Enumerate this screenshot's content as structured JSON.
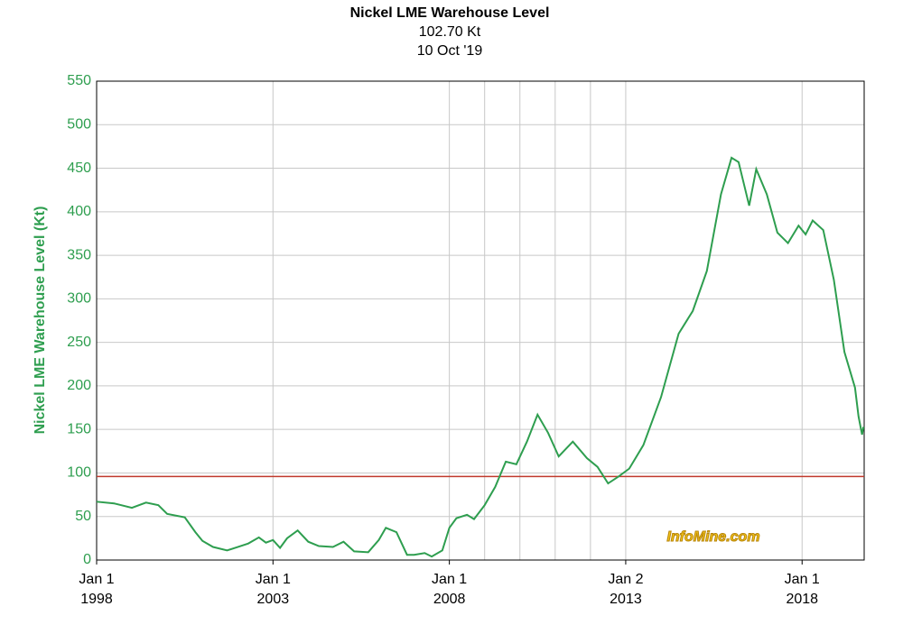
{
  "chart_data": {
    "type": "line",
    "title": "Nickel LME Warehouse Level",
    "subtitle": "102.70 Kt",
    "date": "10 Oct '19",
    "y_label": "Nickel LME Warehouse Level (Kt)",
    "watermark": "InfoMine.com",
    "xlim": [
      1998,
      2019.76
    ],
    "ylim": [
      0,
      550
    ],
    "yticks": [
      0,
      50,
      100,
      150,
      200,
      250,
      300,
      350,
      400,
      450,
      500,
      550
    ],
    "xticks": [
      {
        "value": 1998,
        "label": [
          "Jan 1",
          "1998"
        ]
      },
      {
        "value": 2003,
        "label": [
          "Jan 1",
          "2003"
        ]
      },
      {
        "value": 2008,
        "label": [
          "Jan 1",
          "2008"
        ]
      },
      {
        "value": 2013,
        "label": [
          "Jan 2",
          "2013"
        ]
      },
      {
        "value": 2018,
        "label": [
          "Jan 1",
          "2018"
        ]
      }
    ],
    "x_minor_grid": [
      2009,
      2010,
      2011,
      2012
    ],
    "grid": true,
    "reference_line": {
      "value": 96,
      "color": "#c0392b"
    },
    "series": [
      {
        "name": "Nickel LME Warehouse Level",
        "color": "#2e9e4f",
        "x": [
          1998,
          1998.5,
          1999,
          1999.4,
          1999.75,
          2000,
          2000.5,
          2000.8,
          2001,
          2001.3,
          2001.7,
          2002,
          2002.3,
          2002.6,
          2002.8,
          2003,
          2003.2,
          2003.4,
          2003.7,
          2004,
          2004.3,
          2004.7,
          2005,
          2005.3,
          2005.7,
          2006,
          2006.2,
          2006.5,
          2006.8,
          2007,
          2007.3,
          2007.5,
          2007.8,
          2008,
          2008.2,
          2008.5,
          2008.7,
          2009,
          2009.3,
          2009.6,
          2009.9,
          2010.2,
          2010.5,
          2010.8,
          2011.1,
          2011.5,
          2011.9,
          2012.2,
          2012.5,
          2012.8,
          2013.1,
          2013.5,
          2014,
          2014.5,
          2014.9,
          2015.3,
          2015.7,
          2016,
          2016.2,
          2016.5,
          2016.7,
          2017,
          2017.3,
          2017.6,
          2017.9,
          2018.1,
          2018.3,
          2018.6,
          2018.9,
          2019.2,
          2019.5,
          2019.6,
          2019.7,
          2019.74
        ],
        "values": [
          67,
          65,
          60,
          66,
          63,
          53,
          49,
          32,
          22,
          15,
          11,
          15,
          19,
          26,
          20,
          23,
          14,
          25,
          34,
          21,
          16,
          15,
          21,
          10,
          9,
          23,
          37,
          32,
          6,
          6,
          8,
          4,
          11,
          37,
          48,
          52,
          47,
          63,
          84,
          113,
          110,
          136,
          167,
          146,
          119,
          136,
          117,
          107,
          88,
          96,
          105,
          132,
          187,
          260,
          286,
          332,
          420,
          462,
          457,
          407,
          449,
          420,
          376,
          364,
          384,
          374,
          390,
          379,
          322,
          239,
          198,
          165,
          144,
          153
        ]
      }
    ]
  }
}
